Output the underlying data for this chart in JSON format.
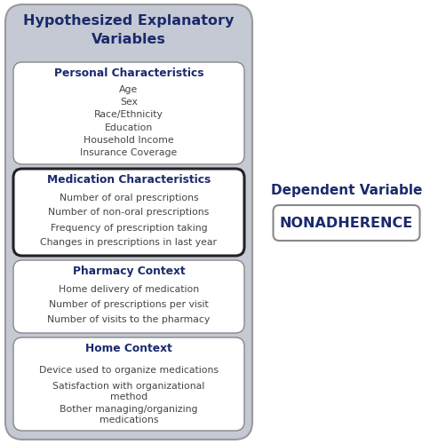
{
  "title_box": {
    "text": "Hypothesized Explanatory\nVariables",
    "bg_color": "#b8bfcc",
    "text_color": "#1a2a6c"
  },
  "left_boxes": [
    {
      "header": "Personal Characteristics",
      "items": [
        "Age",
        "Sex",
        "Race/Ethnicity",
        "Education",
        "Household Income",
        "Insurance Coverage"
      ],
      "border_color": "#888888",
      "border_width": 1.0,
      "bg_color": "#ffffff"
    },
    {
      "header": "Medication Characteristics",
      "items": [
        "Number of oral prescriptions",
        "Number of non-oral prescriptions",
        "Frequency of prescription taking",
        "Changes in prescriptions in last year"
      ],
      "border_color": "#222222",
      "border_width": 2.2,
      "bg_color": "#ffffff"
    },
    {
      "header": "Pharmacy Context",
      "items": [
        "Home delivery of medication",
        "Number of prescriptions per visit",
        "Number of visits to the pharmacy"
      ],
      "border_color": "#888888",
      "border_width": 1.0,
      "bg_color": "#ffffff"
    },
    {
      "header": "Home Context",
      "items": [
        "Device used to organize medications",
        "Satisfaction with organizational\nmethod",
        "Bother managing/organizing\nmedications"
      ],
      "border_color": "#888888",
      "border_width": 1.0,
      "bg_color": "#ffffff"
    }
  ],
  "right_box": {
    "label": "Dependent Variable",
    "text": "NONADHERENCE",
    "label_color": "#1a2a6c",
    "text_color": "#1a2a6c",
    "border_color": "#888888",
    "bg_color": "#ffffff"
  },
  "outer_bg_color": "#c4c9d4",
  "outer_border_color": "#999999",
  "text_color_normal": "#444444",
  "header_color": "#1a2a6c",
  "fig_bg": "#ffffff"
}
